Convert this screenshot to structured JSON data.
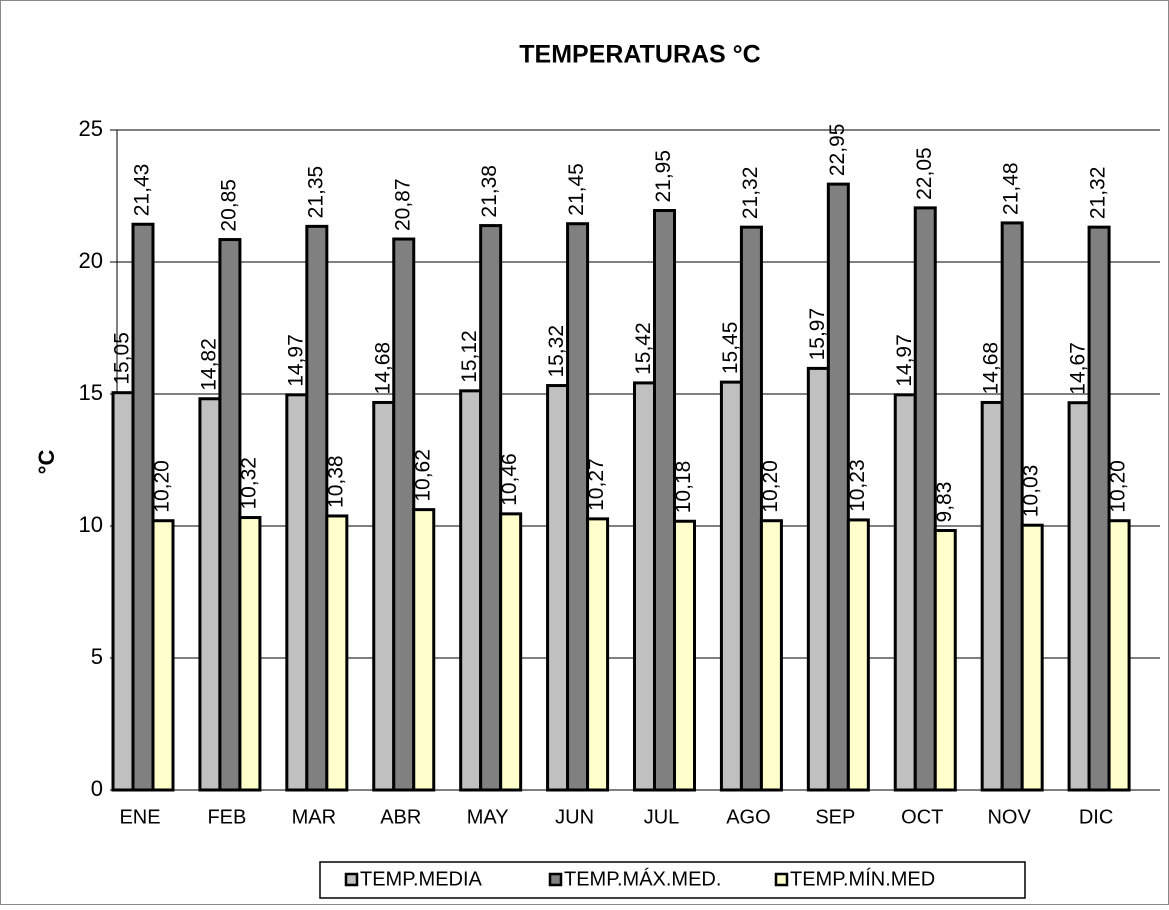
{
  "chart_data": {
    "type": "bar",
    "title": "TEMPERATURAS °C",
    "y_label": "°C",
    "categories": [
      "ENE",
      "FEB",
      "MAR",
      "ABR",
      "MAY",
      "JUN",
      "JUL",
      "AGO",
      "SEP",
      "OCT",
      "NOV",
      "DIC"
    ],
    "series": [
      {
        "name": "TEMP.MEDIA",
        "color": "#c0c0c0",
        "values": [
          15.05,
          14.82,
          14.97,
          14.68,
          15.12,
          15.32,
          15.42,
          15.45,
          15.97,
          14.97,
          14.68,
          14.67
        ],
        "value_labels": [
          "15,05",
          "14,82",
          "14,97",
          "14,68",
          "15,12",
          "15,32",
          "15,42",
          "15,45",
          "15,97",
          "14,97",
          "14,68",
          "14,67"
        ]
      },
      {
        "name": "TEMP.MÁX.MED.",
        "color": "#808080",
        "values": [
          21.43,
          20.85,
          21.35,
          20.87,
          21.38,
          21.45,
          21.95,
          21.32,
          22.95,
          22.05,
          21.48,
          21.32
        ],
        "value_labels": [
          "21,43",
          "20,85",
          "21,35",
          "20,87",
          "21,38",
          "21,45",
          "21,95",
          "21,32",
          "22,95",
          "22,05",
          "21,48",
          "21,32"
        ]
      },
      {
        "name": "TEMP.MÍN.MED",
        "color": "#ffffcc",
        "values": [
          10.2,
          10.32,
          10.38,
          10.62,
          10.46,
          10.27,
          10.18,
          10.2,
          10.23,
          9.83,
          10.03,
          10.2
        ],
        "value_labels": [
          "10,20",
          "10,32",
          "10,38",
          "10,62",
          "10,46",
          "10,27",
          "10,18",
          "10,20",
          "10,23",
          "9,83",
          "10,03",
          "10,20"
        ]
      }
    ],
    "ylim": [
      0,
      25
    ],
    "yticks": [
      0,
      5,
      10,
      15,
      20,
      25
    ],
    "grid": true,
    "legend": "bottom"
  }
}
